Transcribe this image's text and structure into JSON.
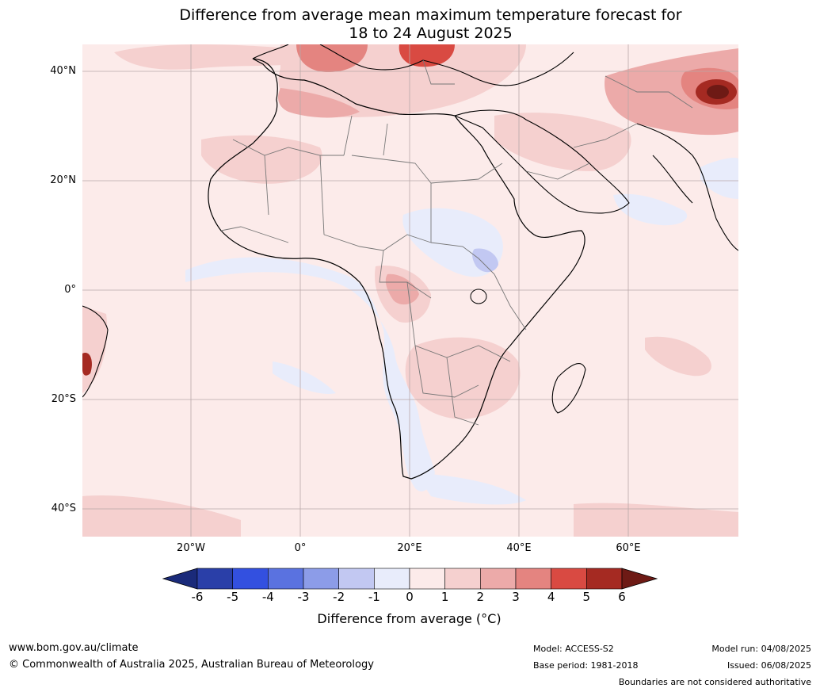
{
  "title_line1": "Difference from average mean maximum temperature forecast for",
  "title_line2": "18 to 24 August 2025",
  "lat_labels": [
    "40°N",
    "20°N",
    "0°",
    "20°S",
    "40°S"
  ],
  "lon_labels": [
    "20°W",
    "0°",
    "20°E",
    "40°E",
    "60°E"
  ],
  "colorbar": {
    "ticks": [
      "-6",
      "-5",
      "-4",
      "-3",
      "-2",
      "-1",
      "0",
      "1",
      "2",
      "3",
      "4",
      "5",
      "6"
    ],
    "colors": [
      "#1a2a7a",
      "#2a3fa8",
      "#3350e0",
      "#5a72e0",
      "#8c9ce8",
      "#c2c8f2",
      "#e8ecfb",
      "#fcebea",
      "#f5d0cf",
      "#ecaaa9",
      "#e48480",
      "#d94a42",
      "#a52a22",
      "#6e1a15"
    ],
    "label": "Difference from average (°C)"
  },
  "footer": {
    "url": "www.bom.gov.au/climate",
    "copyright": "© Commonwealth of Australia 2025, Australian Bureau of Meteorology",
    "model": "Model: ACCESS-S2",
    "base_period": "Base period: 1981-2018",
    "model_run": "Model run: 04/08/2025",
    "issued": "Issued: 06/08/2025",
    "disclaimer": "Boundaries are not considered authoritative"
  }
}
